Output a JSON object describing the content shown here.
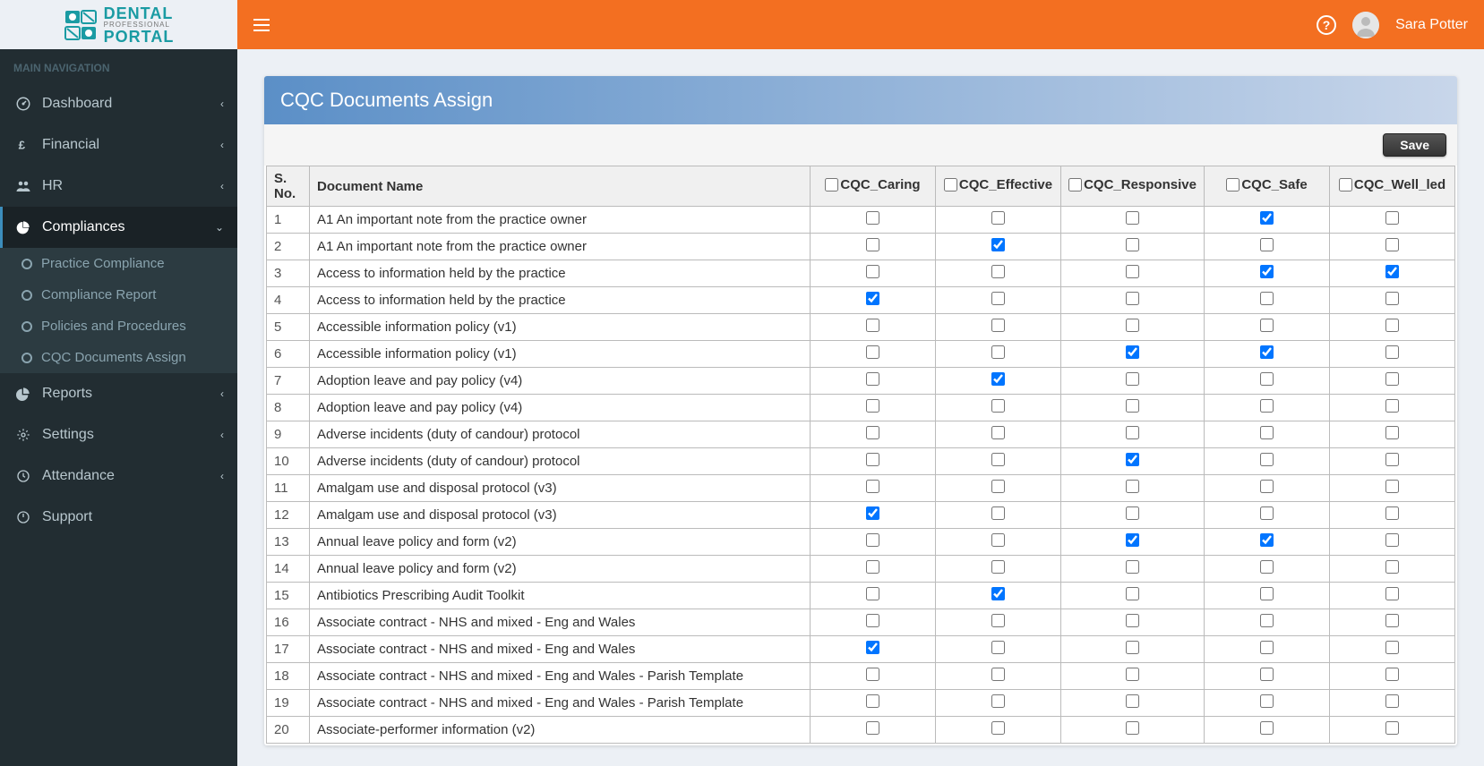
{
  "brand": {
    "top": "DENTAL",
    "mid": "PROFESSIONAL",
    "bot": "PORTAL"
  },
  "nav_header": "MAIN NAVIGATION",
  "nav": {
    "dashboard": "Dashboard",
    "financial": "Financial",
    "hr": "HR",
    "compliances": "Compliances",
    "reports": "Reports",
    "settings": "Settings",
    "attendance": "Attendance",
    "support": "Support"
  },
  "compliances_sub": {
    "practice": "Practice Compliance",
    "report": "Compliance Report",
    "policies": "Policies and Procedures",
    "cqc": "CQC Documents Assign"
  },
  "user": {
    "name": "Sara Potter"
  },
  "panel": {
    "title": "CQC Documents Assign",
    "save": "Save"
  },
  "columns": {
    "sno": "S. No.",
    "name": "Document Name",
    "c1": "CQC_Caring",
    "c2": "CQC_Effective",
    "c3": "CQC_Responsive",
    "c4": "CQC_Safe",
    "c5": "CQC_Well_led"
  },
  "rows": [
    {
      "n": "1",
      "name": "A1 An important note from the practice owner",
      "c": [
        false,
        false,
        false,
        true,
        false
      ]
    },
    {
      "n": "2",
      "name": "A1 An important note from the practice owner",
      "c": [
        false,
        true,
        false,
        false,
        false
      ]
    },
    {
      "n": "3",
      "name": "Access to information held by the practice",
      "c": [
        false,
        false,
        false,
        true,
        true
      ]
    },
    {
      "n": "4",
      "name": "Access to information held by the practice",
      "c": [
        true,
        false,
        false,
        false,
        false
      ]
    },
    {
      "n": "5",
      "name": "Accessible information policy (v1)",
      "c": [
        false,
        false,
        false,
        false,
        false
      ]
    },
    {
      "n": "6",
      "name": "Accessible information policy (v1)",
      "c": [
        false,
        false,
        true,
        true,
        false
      ]
    },
    {
      "n": "7",
      "name": "Adoption leave and pay policy (v4)",
      "c": [
        false,
        true,
        false,
        false,
        false
      ]
    },
    {
      "n": "8",
      "name": "Adoption leave and pay policy (v4)",
      "c": [
        false,
        false,
        false,
        false,
        false
      ]
    },
    {
      "n": "9",
      "name": "Adverse incidents (duty of candour) protocol",
      "c": [
        false,
        false,
        false,
        false,
        false
      ]
    },
    {
      "n": "10",
      "name": "Adverse incidents (duty of candour) protocol",
      "c": [
        false,
        false,
        true,
        false,
        false
      ]
    },
    {
      "n": "11",
      "name": "Amalgam use and disposal protocol (v3)",
      "c": [
        false,
        false,
        false,
        false,
        false
      ]
    },
    {
      "n": "12",
      "name": "Amalgam use and disposal protocol (v3)",
      "c": [
        true,
        false,
        false,
        false,
        false
      ]
    },
    {
      "n": "13",
      "name": "Annual leave policy and form (v2)",
      "c": [
        false,
        false,
        true,
        true,
        false
      ]
    },
    {
      "n": "14",
      "name": "Annual leave policy and form (v2)",
      "c": [
        false,
        false,
        false,
        false,
        false
      ]
    },
    {
      "n": "15",
      "name": "Antibiotics Prescribing Audit Toolkit",
      "c": [
        false,
        true,
        false,
        false,
        false
      ]
    },
    {
      "n": "16",
      "name": "Associate contract - NHS and mixed - Eng and Wales",
      "c": [
        false,
        false,
        false,
        false,
        false
      ]
    },
    {
      "n": "17",
      "name": "Associate contract - NHS and mixed - Eng and Wales",
      "c": [
        true,
        false,
        false,
        false,
        false
      ]
    },
    {
      "n": "18",
      "name": "Associate contract - NHS and mixed - Eng and Wales - Parish Template",
      "c": [
        false,
        false,
        false,
        false,
        false
      ]
    },
    {
      "n": "19",
      "name": "Associate contract - NHS and mixed - Eng and Wales - Parish Template",
      "c": [
        false,
        false,
        false,
        false,
        false
      ]
    },
    {
      "n": "20",
      "name": "Associate-performer information (v2)",
      "c": [
        false,
        false,
        false,
        false,
        false
      ]
    }
  ],
  "colors": {
    "accent": "#f36f21",
    "sidebar": "#222d32",
    "panel_header_from": "#5b8fc7",
    "panel_header_to": "#c8d6ea"
  }
}
